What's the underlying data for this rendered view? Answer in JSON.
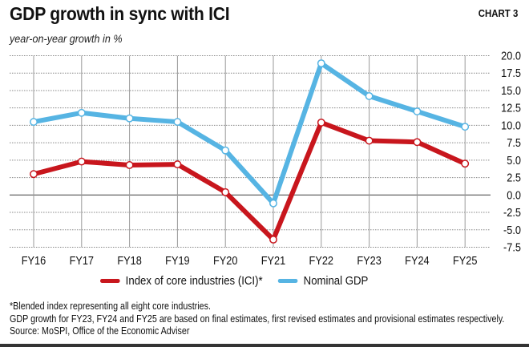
{
  "header": {
    "title": "GDP growth in sync with ICI",
    "chart_label": "CHART 3",
    "subtitle": "year-on-year growth in %"
  },
  "legend": [
    {
      "label": "Index of core industries (ICI)*",
      "color": "#c8161d"
    },
    {
      "label": "Nominal GDP",
      "color": "#56b4e3"
    }
  ],
  "notes": {
    "footnote": "*Blended index representing all eight core industries.",
    "source": "GDP growth for FY23, FY24 and FY25 are based on final estimates, first revised estimates and provisional estimates respectively. Source: MoSPI, Office of the Economic Adviser"
  },
  "chart_data": {
    "type": "line",
    "title": "GDP growth in sync with ICI",
    "subtitle": "year-on-year growth in %",
    "xlabel": "",
    "ylabel": "year-on-year growth in %",
    "categories": [
      "FY16",
      "FY17",
      "FY18",
      "FY19",
      "FY20",
      "FY21",
      "FY22",
      "FY23",
      "FY24",
      "FY25"
    ],
    "series": [
      {
        "name": "Index of core industries (ICI)*",
        "color": "#c8161d",
        "values": [
          3.0,
          4.8,
          4.3,
          4.4,
          0.4,
          -6.4,
          10.4,
          7.8,
          7.6,
          4.5
        ]
      },
      {
        "name": "Nominal GDP",
        "color": "#56b4e3",
        "values": [
          10.5,
          11.8,
          11.0,
          10.5,
          6.4,
          -1.2,
          18.9,
          14.2,
          12.0,
          9.8
        ]
      }
    ],
    "ylim": [
      -7.5,
      20.0
    ],
    "yticks": [
      "20.0",
      "17.5",
      "15.0",
      "12.5",
      "10.0",
      "7.5",
      "5.0",
      "2.5",
      "0.0",
      "-2.5",
      "-5.0",
      "-7.5"
    ],
    "ytick_values": [
      20,
      17.5,
      15,
      12.5,
      10,
      7.5,
      5,
      2.5,
      0,
      -2.5,
      -5,
      -7.5
    ],
    "y_axis_side": "right",
    "grid": true,
    "legend_position": "bottom"
  }
}
